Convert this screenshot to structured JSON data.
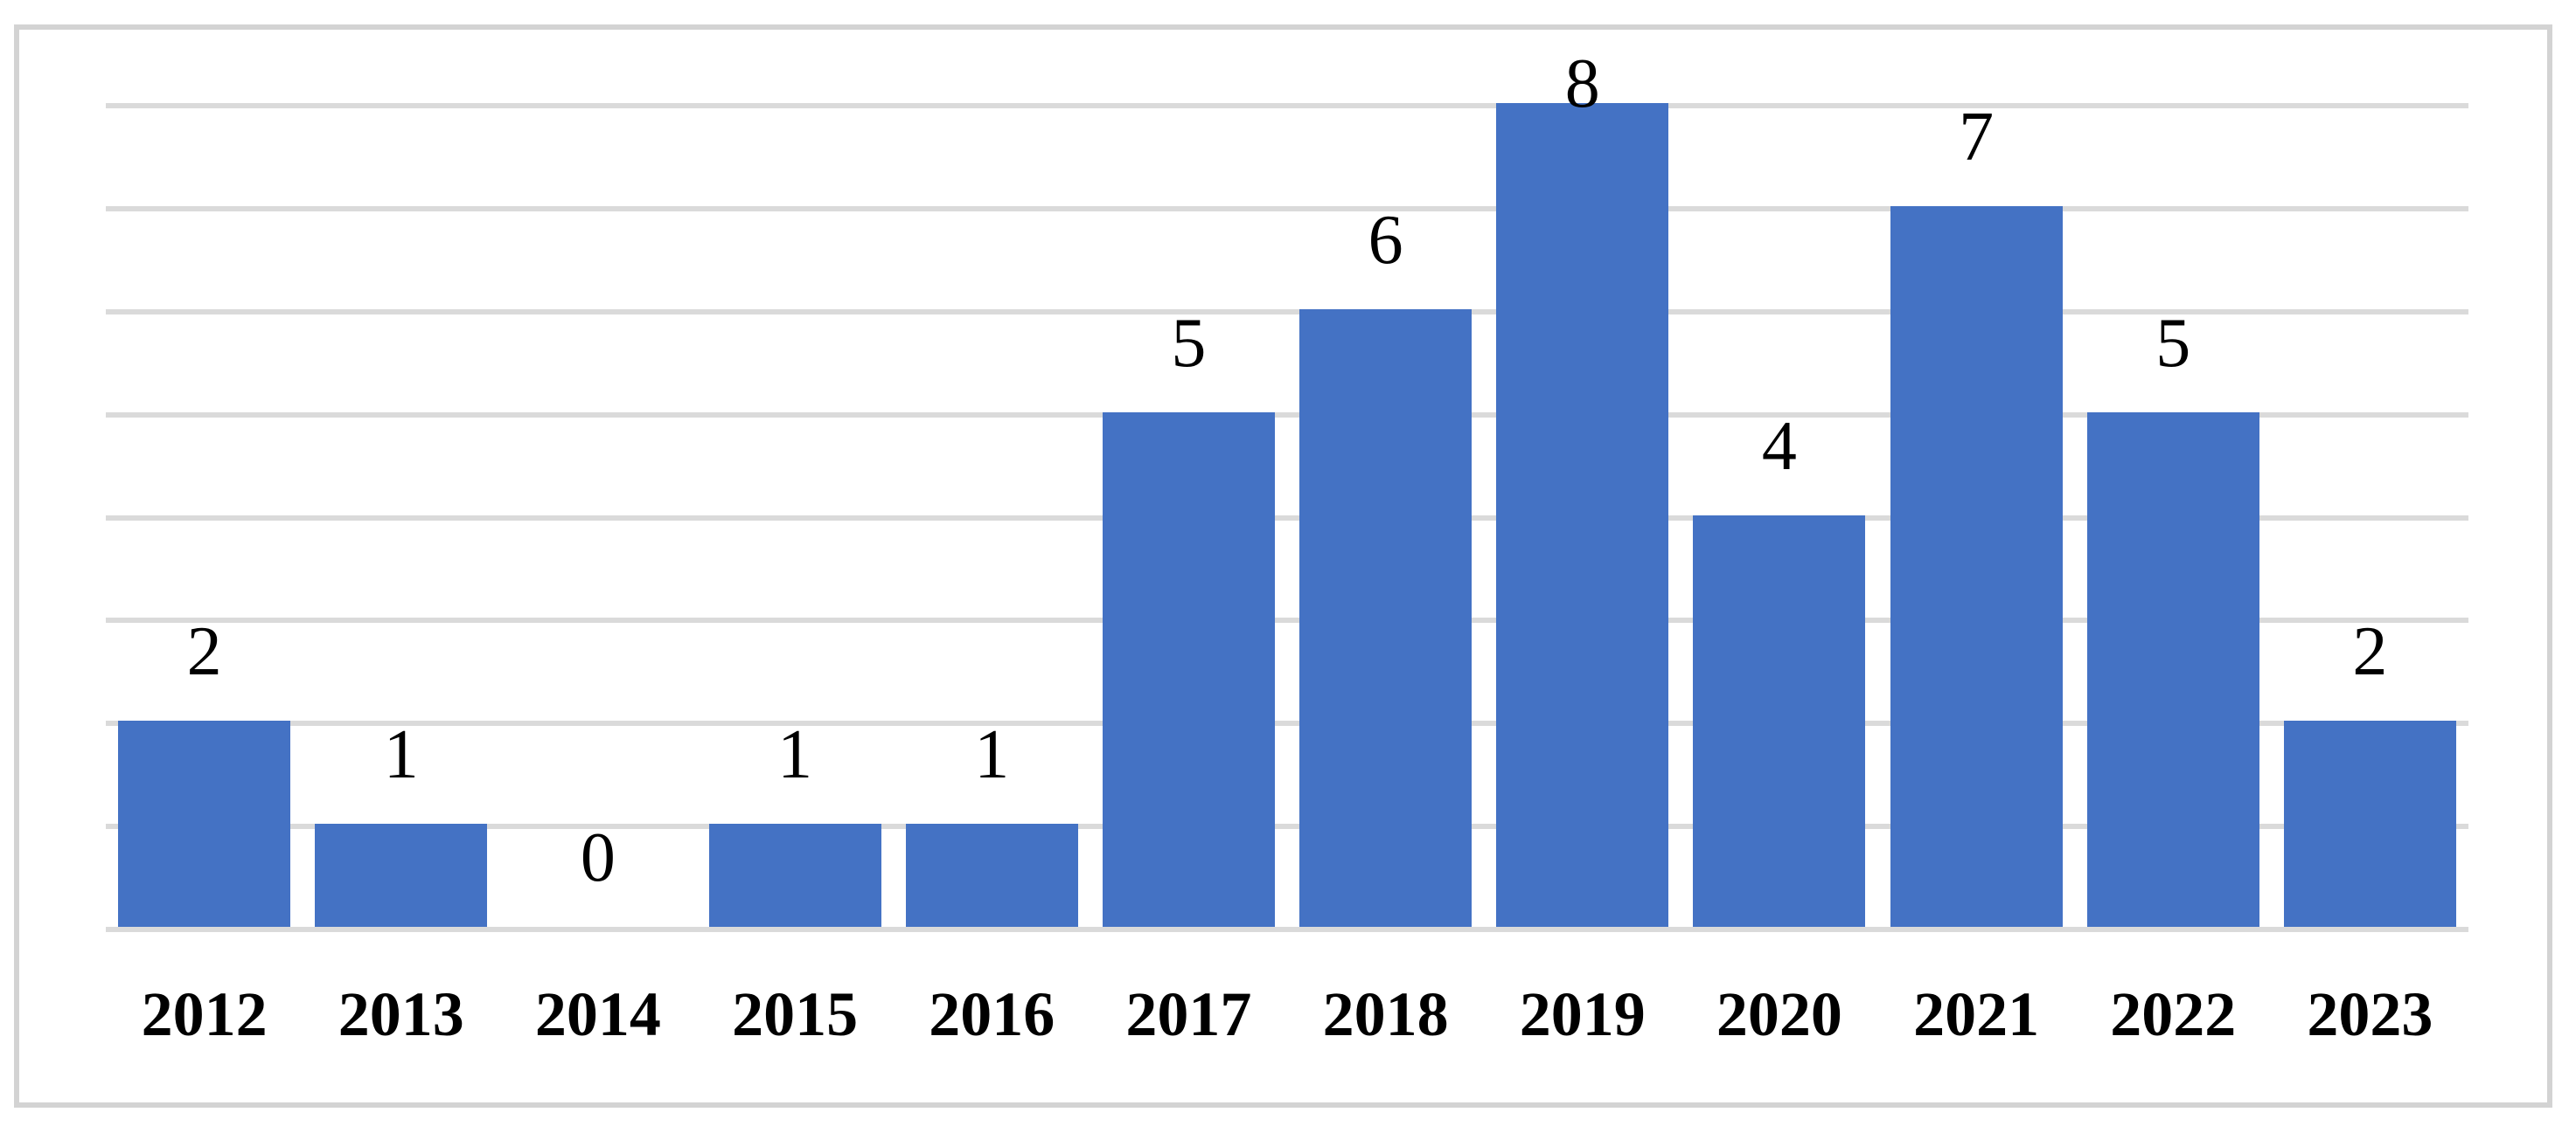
{
  "figure": {
    "background": "#FFFFFF",
    "border_color": "#D3D3D3"
  },
  "chart_data": {
    "type": "bar",
    "title": "",
    "xlabel": "",
    "ylabel": "",
    "categories": [
      "2012",
      "2013",
      "2014",
      "2015",
      "2016",
      "2017",
      "2018",
      "2019",
      "2020",
      "2021",
      "2022",
      "2023"
    ],
    "values": [
      2,
      1,
      0,
      1,
      1,
      5,
      6,
      8,
      4,
      7,
      5,
      2
    ],
    "ylim": [
      0,
      8
    ],
    "gridline_step": 1,
    "grid": true,
    "legend": false,
    "show_data_labels": true,
    "y_tick_labels_visible": false,
    "bar_color": "#4472C4",
    "gridline_color": "#DADADA",
    "text_color": "#000000"
  }
}
